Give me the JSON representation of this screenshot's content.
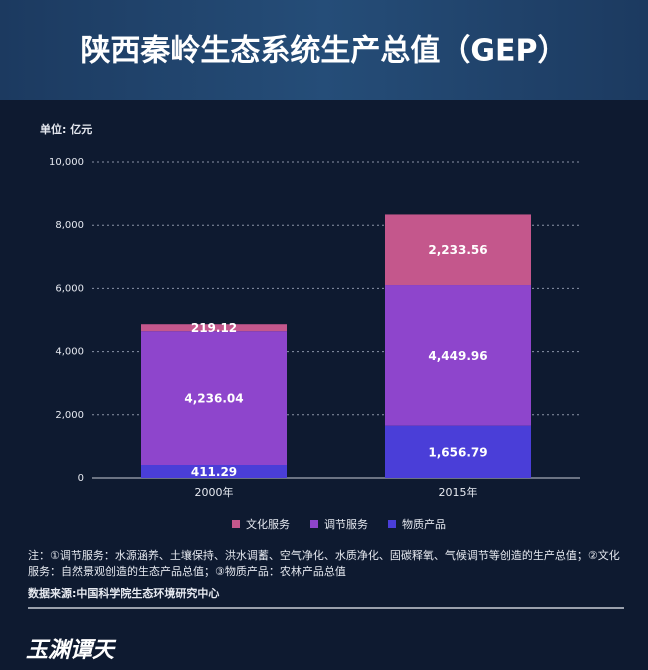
{
  "chart_data": {
    "type": "stacked_bar",
    "title": "陕西秦岭生态系统生产总值（GEP）",
    "unit_label": "单位: 亿元",
    "categories": [
      "2000年",
      "2015年"
    ],
    "series": [
      {
        "name": "文化服务",
        "color": "#c4578c",
        "values": [
          219.12,
          2233.56
        ],
        "value_labels": [
          "219.12",
          "2,233.56"
        ]
      },
      {
        "name": "调节服务",
        "color": "#8e45cc",
        "values": [
          4236.04,
          4449.96
        ],
        "value_labels": [
          "4,236.04",
          "4,449.96"
        ]
      },
      {
        "name": "物质产品",
        "color": "#4a3ed8",
        "values": [
          411.29,
          1656.79
        ],
        "value_labels": [
          "411.29",
          "1,656.79"
        ]
      }
    ],
    "ylim": [
      0,
      10000
    ],
    "yticks": [
      0,
      {
        "value": 2000,
        "label": "2,000"
      },
      {
        "value": 4000,
        "label": "4,000"
      },
      {
        "value": 6000,
        "label": "6,000"
      },
      {
        "value": 8000,
        "label": "8,000"
      },
      {
        "value": 10000,
        "label": "10,000"
      }
    ],
    "grid": true,
    "legend_position": "bottom"
  },
  "notes": "注：①调节服务：水源涵养、土壤保持、洪水调蓄、空气净化、水质净化、固碳释氧、气候调节等创造的生产总值；②文化服务：自然景观创造的生态产品总值；③物质产品：农林产品总值",
  "source": "数据来源:中国科学院生态环境研究中心",
  "logo": "玉渊谭天"
}
